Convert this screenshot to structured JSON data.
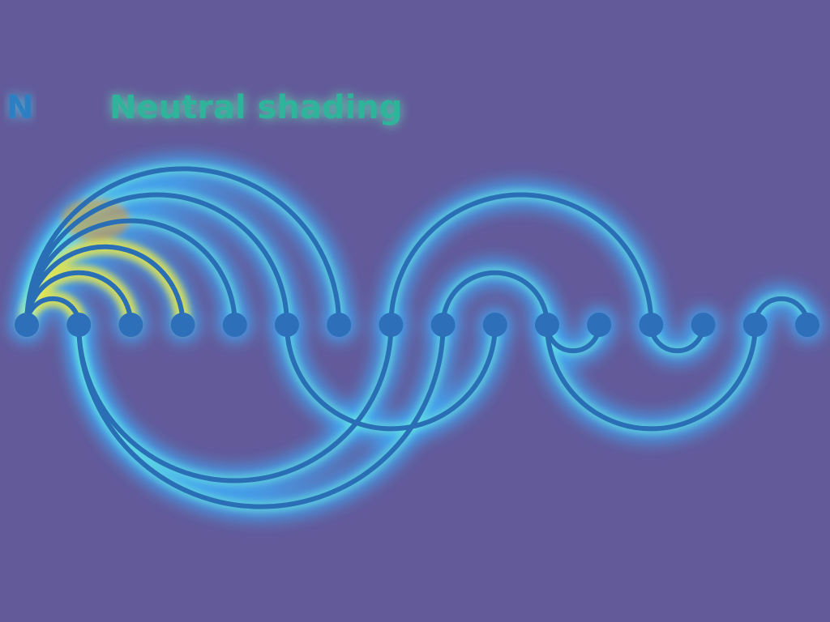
{
  "panel_letter": "N",
  "panel_title": "Neutral shading",
  "colors": {
    "background": "#635a9a",
    "stroke_core": "#2a6fb5",
    "glow_outer": "#3fb0ff",
    "glow_inner": "#6ff0d8",
    "hot_yellow": "#e8e64a",
    "hot_orange": "#e8952a",
    "node": "#2d6fb8"
  },
  "diagram": {
    "node_count": 16,
    "arcs_above": [
      {
        "from": 1,
        "to": 2
      },
      {
        "from": 1,
        "to": 3
      },
      {
        "from": 1,
        "to": 4
      },
      {
        "from": 1,
        "to": 5
      },
      {
        "from": 1,
        "to": 6
      },
      {
        "from": 1,
        "to": 7
      },
      {
        "from": 8,
        "to": 13
      },
      {
        "from": 9,
        "to": 11
      },
      {
        "from": 15,
        "to": 16
      }
    ],
    "arcs_below": [
      {
        "from": 2,
        "to": 8
      },
      {
        "from": 2,
        "to": 9
      },
      {
        "from": 6,
        "to": 10
      },
      {
        "from": 11,
        "to": 12
      },
      {
        "from": 11,
        "to": 15
      },
      {
        "from": 13,
        "to": 14
      }
    ],
    "hot_arcs": [
      2,
      3,
      4
    ]
  }
}
